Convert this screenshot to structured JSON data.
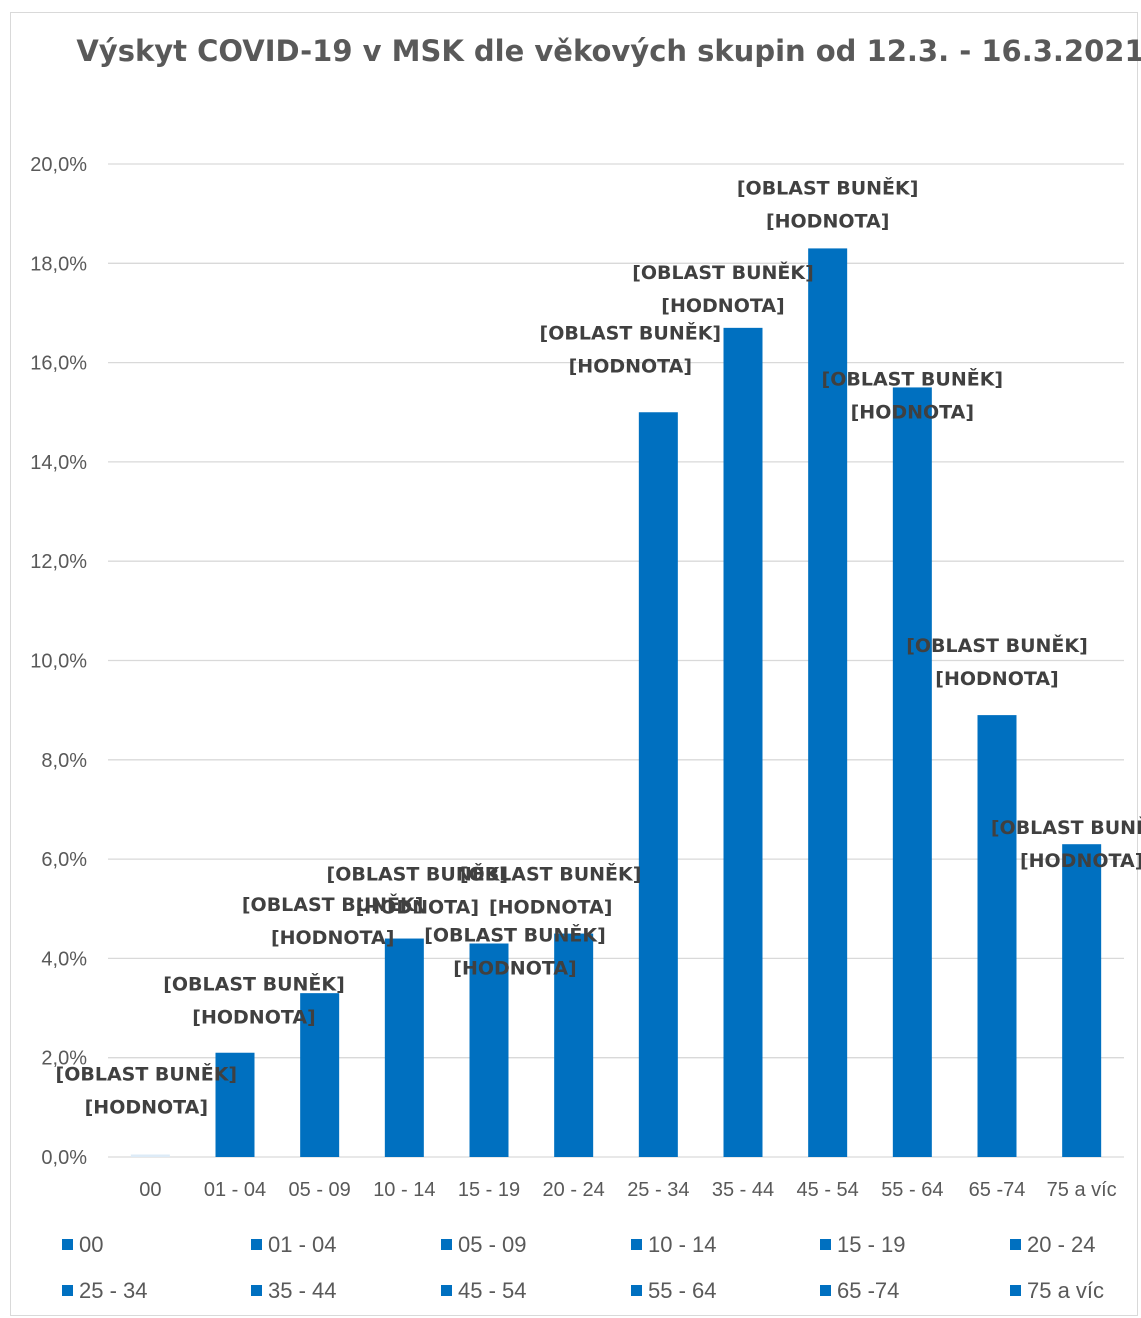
{
  "chart_data": {
    "type": "bar",
    "title": "Výskyt COVID-19 v MSK dle věkových skupin od 12.3. - 16.3.2021",
    "categories": [
      "00",
      "01 - 04",
      "05 - 09",
      "10 - 14",
      "15 - 19",
      "20 - 24",
      "25 - 34",
      "35 - 44",
      "45 - 54",
      "55 - 64",
      "65 -74",
      "75 a víc"
    ],
    "values": [
      0.05,
      2.1,
      3.3,
      4.4,
      4.3,
      4.5,
      15.0,
      16.7,
      18.3,
      15.5,
      8.9,
      6.3
    ],
    "ylim": [
      0,
      20
    ],
    "y_ticks": [
      "0,0%",
      "2,0%",
      "4,0%",
      "6,0%",
      "8,0%",
      "10,0%",
      "12,0%",
      "14,0%",
      "16,0%",
      "18,0%",
      "20,0%"
    ],
    "y_tick_step": 2,
    "data_label_line1": "[OBLAST BUNĚK]",
    "data_label_line2": "[HODNOTA]",
    "legend_entries": [
      "00",
      "01 - 04",
      "05 - 09",
      "10 - 14",
      "15 - 19",
      "20 - 24",
      "25 - 34",
      "35 - 44",
      "45 - 54",
      "55 - 64",
      "65 -74",
      "75 a víc"
    ],
    "legend_placement": "bottom",
    "grid": true,
    "colors": {
      "bar": "#0070c0",
      "first_bar": "#ddebf7",
      "gridline": "#d9d9d9",
      "axis_text": "#595959",
      "data_label": "#404040"
    }
  }
}
